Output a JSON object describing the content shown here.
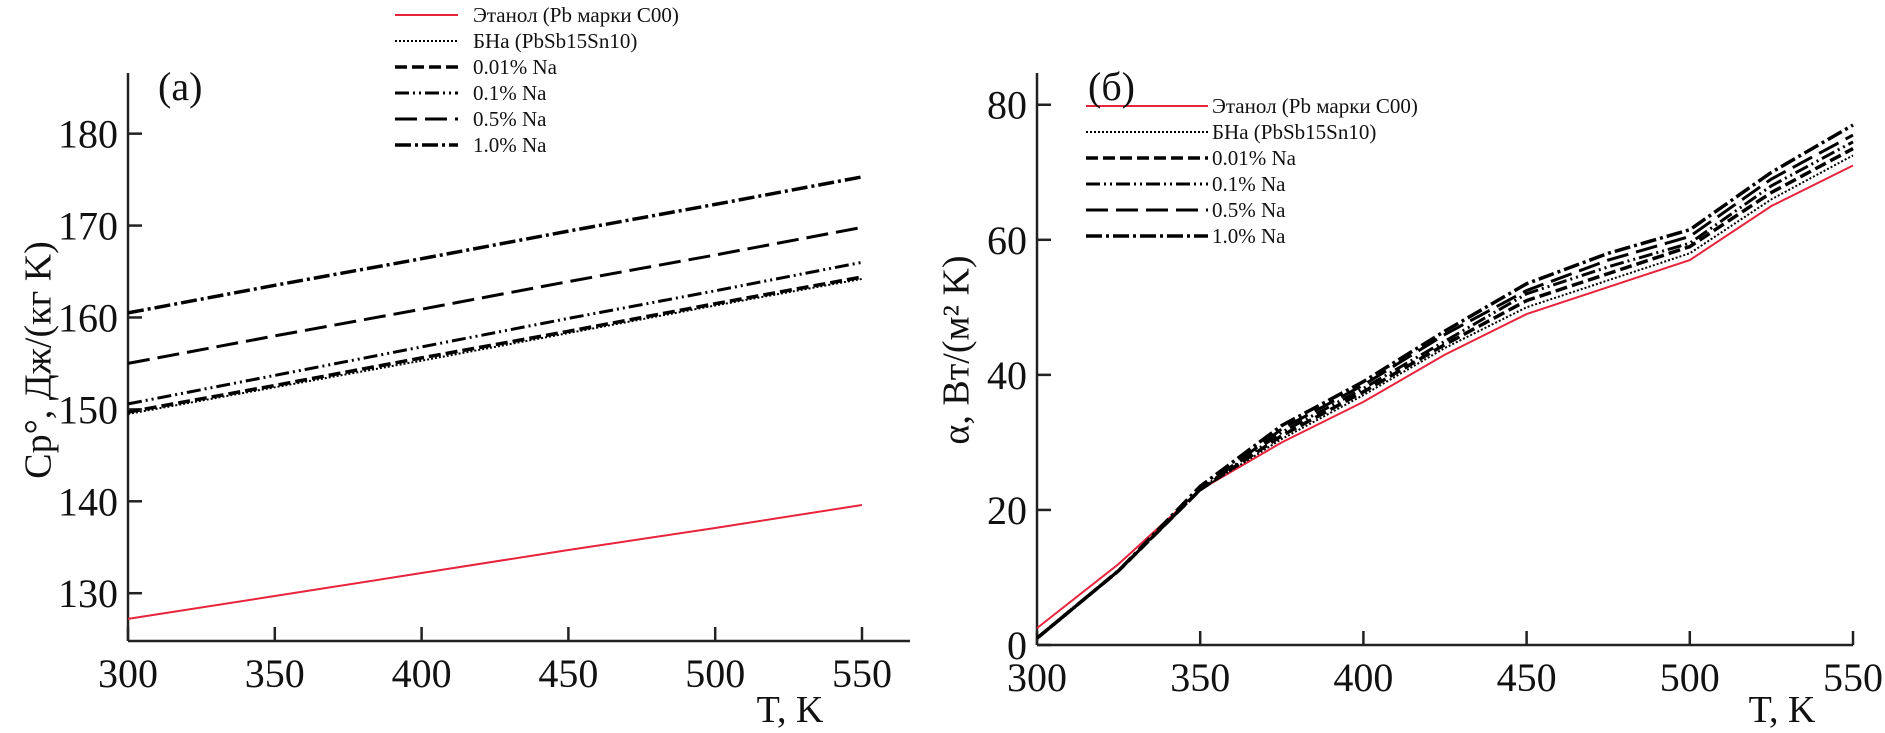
{
  "chart_data": [
    {
      "type": "line",
      "panel_label": "(a)",
      "xlabel": "T, K",
      "ylabel": "Cp°, Дж/(кг K)",
      "xlim": [
        300,
        565
      ],
      "ylim": [
        124.8,
        186.6
      ],
      "xticks": [
        300,
        350,
        400,
        450,
        500,
        550
      ],
      "yticks": [
        130,
        140,
        150,
        160,
        170,
        180
      ],
      "grid": false,
      "legend_placement": "top-right",
      "x": [
        300,
        350,
        400,
        450,
        500,
        550
      ],
      "series": [
        {
          "name": "Этанол (Pb марки C00)",
          "style": "solid",
          "color": "#e8243c",
          "values": [
            127.2,
            129.7,
            132.2,
            134.7,
            137.1,
            139.6
          ]
        },
        {
          "name": "БНа (PbSb15Sn10)",
          "style": "dotted",
          "color": "#000000",
          "values": [
            149.5,
            152.4,
            155.3,
            158.3,
            161.3,
            164.2
          ]
        },
        {
          "name": "0.01% Na",
          "style": "dashed",
          "color": "#000000",
          "values": [
            149.7,
            152.6,
            155.6,
            158.5,
            161.5,
            164.4
          ]
        },
        {
          "name": "0.1% Na",
          "style": "dash-dot-dot",
          "color": "#000000",
          "values": [
            150.6,
            153.7,
            156.8,
            159.9,
            162.9,
            166.0
          ]
        },
        {
          "name": "0.5% Na",
          "style": "long-dash",
          "color": "#000000",
          "values": [
            155.0,
            158.0,
            160.9,
            163.9,
            166.8,
            169.8
          ]
        },
        {
          "name": "1.0% Na",
          "style": "dash-dot",
          "color": "#000000",
          "values": [
            160.5,
            163.5,
            166.4,
            169.4,
            172.3,
            175.3
          ]
        }
      ]
    },
    {
      "type": "line",
      "panel_label": "(б)",
      "xlabel": "T, K",
      "ylabel": "α, Вт/(м² K)",
      "xlim": [
        300,
        550
      ],
      "ylim": [
        0,
        84.7
      ],
      "xticks": [
        300,
        350,
        400,
        450,
        500,
        550
      ],
      "yticks": [
        0,
        20,
        40,
        60,
        80
      ],
      "grid": false,
      "legend_placement": "top-left",
      "x": [
        300,
        325,
        350,
        375,
        400,
        425,
        450,
        475,
        500,
        525,
        550
      ],
      "series": [
        {
          "name": "Этанол (Pb марки C00)",
          "style": "solid",
          "color": "#e8243c",
          "values": [
            2.5,
            12,
            23,
            30,
            36,
            43,
            49,
            53,
            57,
            65,
            71
          ]
        },
        {
          "name": "БНа (PbSb15Sn10)",
          "style": "dotted",
          "color": "#000000",
          "values": [
            1,
            11,
            23,
            30.5,
            37,
            44,
            50,
            54,
            58,
            66,
            72.5
          ]
        },
        {
          "name": "0.01% Na",
          "style": "dashed",
          "color": "#000000",
          "values": [
            1,
            11,
            23,
            31,
            37.5,
            44.5,
            51,
            55,
            59,
            67,
            73.5
          ]
        },
        {
          "name": "0.1% Na",
          "style": "dash-dot-dot",
          "color": "#000000",
          "values": [
            1,
            11,
            23,
            31.5,
            38,
            45,
            52,
            56,
            59.5,
            68,
            74.5
          ]
        },
        {
          "name": "0.5% Na",
          "style": "long-dash",
          "color": "#000000",
          "values": [
            1,
            11,
            23,
            32,
            38.5,
            46,
            52.5,
            57,
            60.5,
            69,
            75.5
          ]
        },
        {
          "name": "1.0% Na",
          "style": "dash-dot",
          "color": "#000000",
          "values": [
            1,
            11,
            23.5,
            32.5,
            39,
            46.5,
            53.5,
            58,
            61.5,
            70,
            77
          ]
        }
      ]
    }
  ]
}
